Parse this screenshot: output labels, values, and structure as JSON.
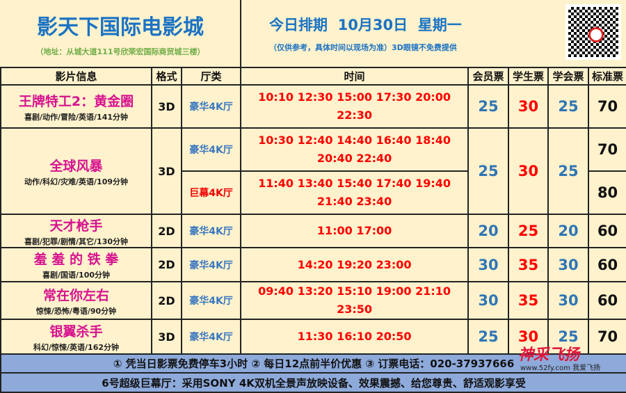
{
  "header": {
    "cinema_name": "影天下国际电影城",
    "address": "（地址：从城大道111号欣荣宏国际商贸城三楼）",
    "schedule_title": "今日排期  10月30日  星期一",
    "note": "（仅供参考，具体时间以现场为准）3D眼镜不免费提供",
    "qr_icon": "qr-code-icon"
  },
  "columns": [
    "影片信息",
    "格式",
    "厅类",
    "时间",
    "会员票",
    "学生票",
    "学会票",
    "标准票"
  ],
  "movies": [
    {
      "title": "王牌特工2：黄金圈",
      "genre": "喜剧/动作/冒险/英语/141分钟",
      "format": "3D",
      "halls": [
        {
          "hall": "豪华4K厅",
          "times": "10:10 12:30 15:00 17:30 20:00 22:30",
          "standard": "70"
        }
      ],
      "member": "25",
      "student": "30",
      "union": "25"
    },
    {
      "title": "全球风暴",
      "genre": "动作/科幻/灾难/英语/109分钟",
      "format": "3D",
      "halls": [
        {
          "hall": "豪华4K厅",
          "times": "10:30 12:40 14:40 16:40 18:40 20:40 22:40",
          "standard": "70"
        },
        {
          "hall": "巨幕4K厅",
          "times": "11:40 13:40 15:40 17:40 19:40 21:40 23:40",
          "standard": "80"
        }
      ],
      "member": "25",
      "student": "30",
      "union": "25"
    },
    {
      "title": "天才枪手",
      "genre": "喜剧/犯罪/剧情/其它/130分钟",
      "format": "2D",
      "halls": [
        {
          "hall": "豪华4K厅",
          "times": "11:00 17:00",
          "standard": "60"
        }
      ],
      "member": "20",
      "student": "25",
      "union": "20"
    },
    {
      "title": "羞 羞 的 铁 拳",
      "genre": "喜剧/国语/100分钟",
      "format": "2D",
      "halls": [
        {
          "hall": "豪华4K厅",
          "times": "14:20 19:20 23:00",
          "standard": "60"
        }
      ],
      "member": "30",
      "student": "35",
      "union": "30"
    },
    {
      "title": "常在你左右",
      "genre": "惊悚/恐怖/粤语/90分钟",
      "format": "2D",
      "halls": [
        {
          "hall": "豪华4K厅",
          "times": "09:40 13:20 15:10 19:00 21:10 23:50",
          "standard": "60"
        }
      ],
      "member": "30",
      "student": "35",
      "union": "30"
    },
    {
      "title": "银翼杀手",
      "genre": "科幻/惊悚/英语/162分钟",
      "format": "3D",
      "halls": [
        {
          "hall": "豪华4K厅",
          "times": "11:30 16:10 20:50",
          "standard": "70"
        }
      ],
      "member": "25",
      "student": "30",
      "union": "25"
    }
  ],
  "footer": {
    "line1": "① 凭当日影票免费停车3小时  ② 每日12点前半价优惠  ③ 订票电话：020-37937666",
    "line2": "6号超级巨幕厅：采用SONY 4K双机全景声放映设备、效果震撼、给您尊贵、舒适观影享受"
  },
  "watermark": {
    "text": "神采飞扬",
    "url": "www.52fy.com",
    "sub": "我爱飞扬"
  },
  "colors": {
    "background": "#fff2cc",
    "title": "#1a73c4",
    "movie": "#d6128f",
    "times": "#ff0000",
    "footer": "#8eaadb"
  }
}
